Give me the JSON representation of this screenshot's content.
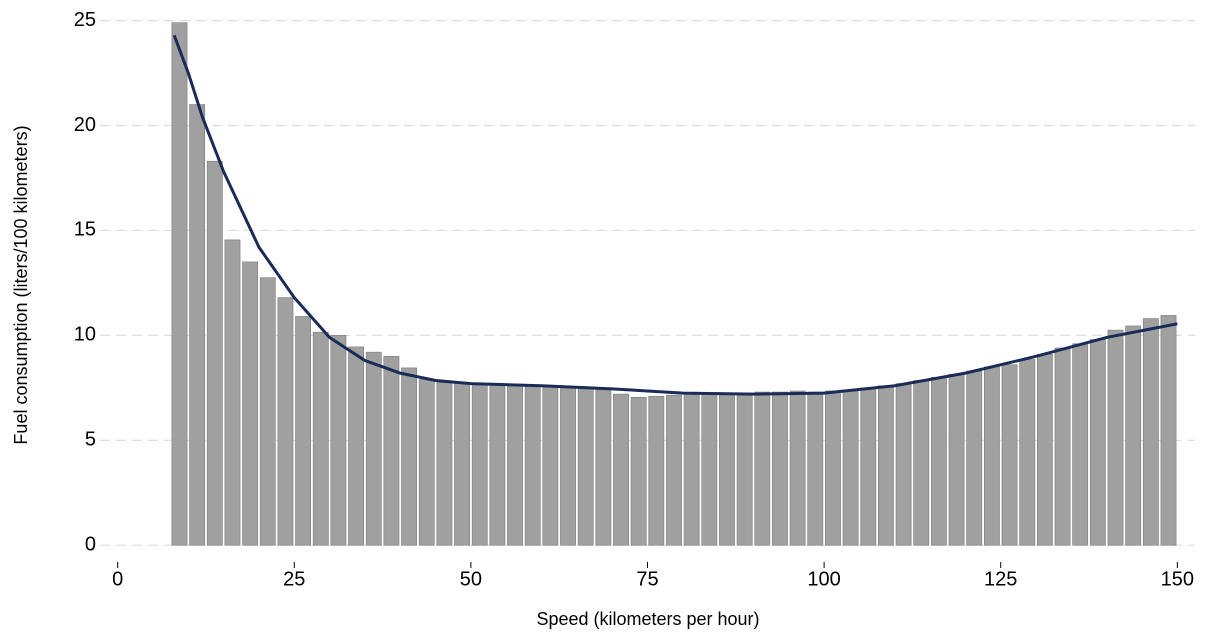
{
  "chart_data": {
    "type": "bar",
    "xlabel": "Speed (kilometers per hour)",
    "ylabel": "Fuel consumption (liters/100 kilometers)",
    "xlim": [
      -2.5,
      152.5
    ],
    "xticks": [
      0,
      25,
      50,
      75,
      100,
      125,
      150
    ],
    "ylim": [
      -0.8,
      25.6
    ],
    "yticks": [
      0,
      5,
      10,
      15,
      20,
      25
    ],
    "grid": true,
    "series": [
      {
        "type": "bar",
        "color": "#a0a0a0",
        "x": [
          8.75,
          11.25,
          13.75,
          16.25,
          18.75,
          21.25,
          23.75,
          26.25,
          28.75,
          31.25,
          33.75,
          36.25,
          38.75,
          41.25,
          43.75,
          46.25,
          48.75,
          51.25,
          53.75,
          56.25,
          58.75,
          61.25,
          63.75,
          66.25,
          68.75,
          71.25,
          73.75,
          76.25,
          78.75,
          81.25,
          83.75,
          86.25,
          88.75,
          91.25,
          93.75,
          96.25,
          98.75,
          101.25,
          103.75,
          106.25,
          108.75,
          111.25,
          113.75,
          116.25,
          118.75,
          121.25,
          123.75,
          126.25,
          128.75,
          131.25,
          133.75,
          136.25,
          138.75,
          141.25,
          143.75,
          146.25,
          148.75
        ],
        "values": [
          24.9,
          21.0,
          18.3,
          14.55,
          13.5,
          12.75,
          11.8,
          10.9,
          10.15,
          10.0,
          9.45,
          9.2,
          9.0,
          8.45,
          7.9,
          7.75,
          7.7,
          7.7,
          7.65,
          7.6,
          7.6,
          7.6,
          7.55,
          7.5,
          7.4,
          7.2,
          7.05,
          7.1,
          7.15,
          7.2,
          7.2,
          7.2,
          7.25,
          7.3,
          7.3,
          7.35,
          7.3,
          7.35,
          7.4,
          7.5,
          7.6,
          7.7,
          7.85,
          8.0,
          8.15,
          8.3,
          8.5,
          8.6,
          8.85,
          9.1,
          9.4,
          9.6,
          9.8,
          10.25,
          10.45,
          10.8,
          10.95
        ]
      },
      {
        "type": "line",
        "color": "#1a2b57",
        "x": [
          8,
          10,
          12,
          15,
          20,
          25,
          30,
          35,
          40,
          45,
          50,
          60,
          70,
          80,
          90,
          100,
          110,
          120,
          130,
          140,
          150
        ],
        "values": [
          24.3,
          22.5,
          20.4,
          17.8,
          14.2,
          11.8,
          9.9,
          8.8,
          8.2,
          7.85,
          7.7,
          7.6,
          7.45,
          7.25,
          7.2,
          7.25,
          7.6,
          8.2,
          9.0,
          9.9,
          10.55
        ]
      }
    ]
  }
}
